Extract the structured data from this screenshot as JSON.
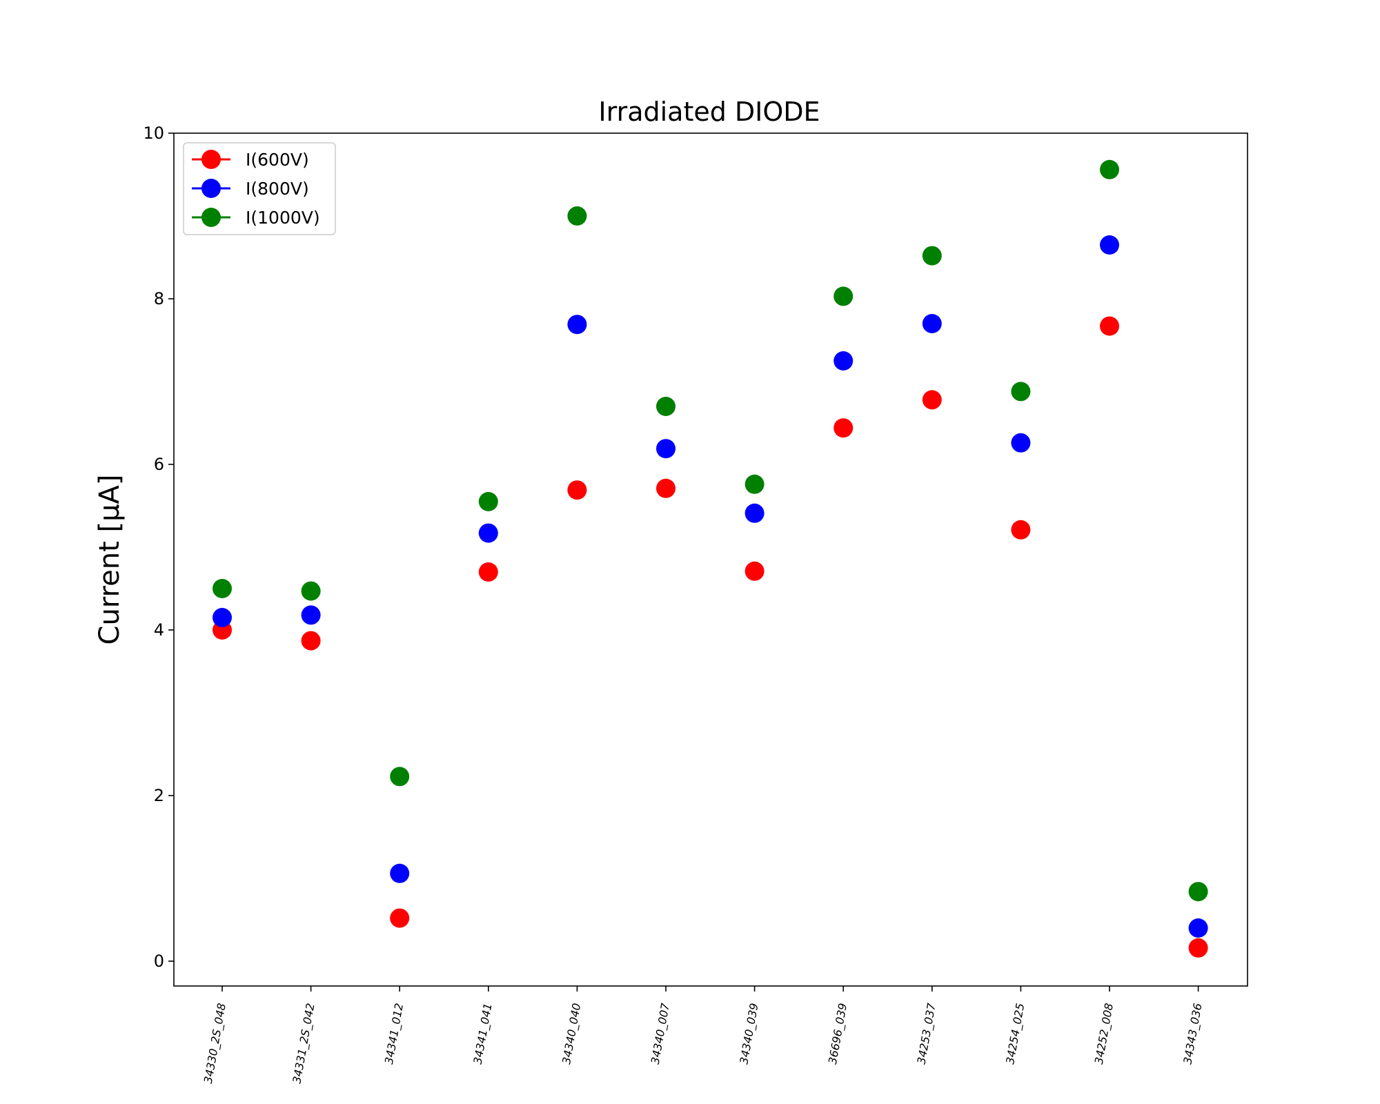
{
  "chart_data": {
    "type": "scatter",
    "title": "Irradiated DIODE",
    "xlabel": "",
    "ylabel": "Current [μA]",
    "ylim": [
      -0.3,
      10
    ],
    "yticks": [
      0,
      2,
      4,
      6,
      8,
      10
    ],
    "grid": false,
    "legend_position": "top-left",
    "categories": [
      "34330_2S_048",
      "34331_2S_042",
      "34341_012",
      "34341_041",
      "34340_040",
      "34340_007",
      "34340_039",
      "36696_039",
      "34253_037",
      "34254_025",
      "34252_008",
      "34343_036"
    ],
    "series": [
      {
        "name": "I(600V)",
        "color": "#ff0000",
        "values": [
          4.0,
          3.87,
          0.52,
          4.7,
          5.69,
          5.71,
          4.71,
          6.44,
          6.78,
          5.21,
          7.67,
          0.16
        ]
      },
      {
        "name": "I(800V)",
        "color": "#0000ff",
        "values": [
          4.15,
          4.18,
          1.06,
          5.17,
          7.69,
          6.19,
          5.41,
          7.25,
          7.7,
          6.26,
          8.65,
          0.4
        ]
      },
      {
        "name": "I(1000V)",
        "color": "#008000",
        "values": [
          4.5,
          4.47,
          2.23,
          5.55,
          9.0,
          6.7,
          5.76,
          8.03,
          8.52,
          6.88,
          9.56,
          0.84
        ]
      }
    ]
  }
}
